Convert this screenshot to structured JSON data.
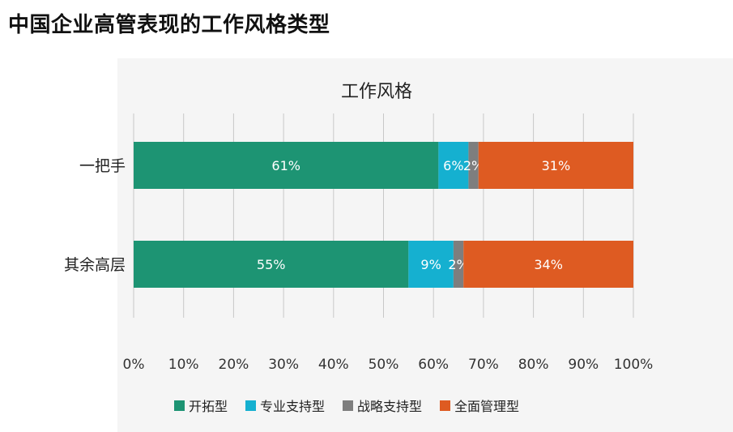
{
  "page_title": "中国企业高管表现的工作风格类型",
  "chart_data": {
    "type": "bar",
    "orientation": "horizontal",
    "stacked": true,
    "title": "工作风格",
    "categories": [
      "一把手",
      "其余高层"
    ],
    "series": [
      {
        "name": "开拓型",
        "color": "#1d9473",
        "values": [
          61,
          55
        ],
        "labels": [
          "61%",
          "55%"
        ]
      },
      {
        "name": "专业支持型",
        "color": "#15b0d0",
        "values": [
          6,
          9
        ],
        "labels": [
          "6%",
          "9%"
        ]
      },
      {
        "name": "战略支持型",
        "color": "#7e7e7e",
        "values": [
          2,
          2
        ],
        "labels": [
          "2%",
          "2%"
        ]
      },
      {
        "name": "全面管理型",
        "color": "#de5b22",
        "values": [
          31,
          34
        ],
        "labels": [
          "31%",
          "34%"
        ]
      }
    ],
    "x_ticks": [
      "0%",
      "10%",
      "20%",
      "30%",
      "40%",
      "50%",
      "60%",
      "70%",
      "80%",
      "90%",
      "100%"
    ],
    "xlim": [
      0,
      100
    ],
    "grid": true,
    "legend_position": "bottom"
  }
}
